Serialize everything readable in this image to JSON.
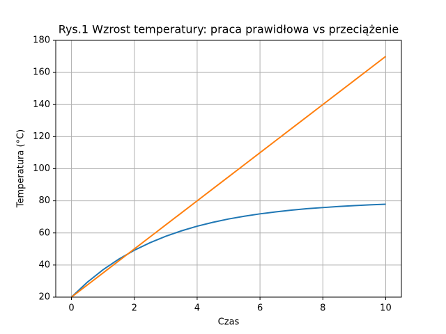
{
  "chart_data": {
    "type": "line",
    "title": "Rys.1 Wzrost temperatury: praca prawidłowa vs przeciążenie",
    "x_label": "Czas",
    "y_label": "Temperatura (°C)",
    "x": [
      0,
      0.5,
      1,
      1.5,
      2,
      2.5,
      3,
      3.5,
      4,
      4.5,
      5,
      5.5,
      6,
      6.5,
      7,
      7.5,
      8,
      8.5,
      9,
      9.5,
      10
    ],
    "series": [
      {
        "color": "#1f77b4",
        "values": [
          20,
          29.2,
          37.0,
          43.6,
          49.2,
          53.9,
          57.9,
          61.3,
          64.2,
          66.6,
          68.7,
          70.4,
          71.9,
          73.1,
          74.2,
          75.1,
          75.8,
          76.5,
          77.0,
          77.5,
          77.9
        ]
      },
      {
        "color": "#ff7f0e",
        "values": [
          20,
          27.5,
          35,
          42.5,
          50,
          57.5,
          65,
          72.5,
          80,
          87.5,
          95,
          102.5,
          110,
          117.5,
          125,
          132.5,
          140,
          147.5,
          155,
          162.5,
          170
        ]
      }
    ],
    "xlim": [
      -0.5,
      10.5
    ],
    "xticks": [
      0,
      2,
      4,
      6,
      8,
      10
    ],
    "ylim": [
      20,
      180
    ],
    "yticks": [
      20,
      40,
      60,
      80,
      100,
      120,
      140,
      160,
      180
    ],
    "grid": true
  }
}
